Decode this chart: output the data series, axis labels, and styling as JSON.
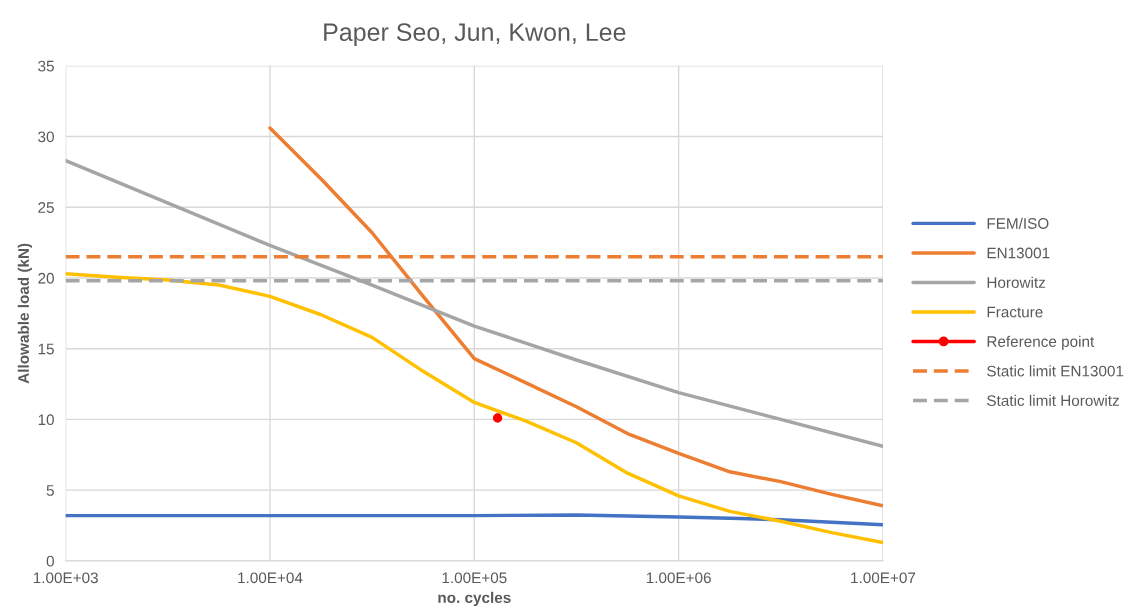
{
  "chart_data": {
    "type": "line",
    "title": "Paper Seo, Jun, Kwon, Lee",
    "xlabel": "no. cycles",
    "ylabel": "Allowable load (kN)",
    "log": "x",
    "xlim": [
      1000,
      10000000
    ],
    "xticks": [
      {
        "value": 1000,
        "label": "1.00E+03"
      },
      {
        "value": 10000,
        "label": "1.00E+04"
      },
      {
        "value": 100000,
        "label": "1.00E+05"
      },
      {
        "value": 1000000,
        "label": "1.00E+06"
      },
      {
        "value": 10000000,
        "label": "1.00E+07"
      }
    ],
    "ylim": [
      0,
      35
    ],
    "yticks": [
      0,
      5,
      10,
      15,
      20,
      25,
      30,
      35
    ],
    "grid": true,
    "legend": "right",
    "series": [
      {
        "name": "FEM/ISO",
        "color": "#4472c4",
        "x": [
          1000,
          10000,
          100000,
          316000,
          1000000,
          2000000,
          3160000,
          10000000
        ],
        "values": [
          3.2,
          3.2,
          3.2,
          3.25,
          3.1,
          3.0,
          2.9,
          2.55
        ]
      },
      {
        "name": "EN13001",
        "color": "#ed7d31",
        "x": [
          10000,
          17800,
          31600,
          56200,
          100000,
          178000,
          316000,
          562000,
          1000000,
          1780000,
          3160000,
          5620000,
          10000000
        ],
        "values": [
          30.6,
          27.0,
          23.2,
          18.7,
          14.3,
          12.6,
          10.9,
          9.0,
          7.6,
          6.3,
          5.6,
          4.7,
          3.9
        ]
      },
      {
        "name": "Horowitz",
        "color": "#a5a5a5",
        "x": [
          1000,
          10000,
          31600,
          100000,
          316000,
          1000000,
          3160000,
          10000000
        ],
        "values": [
          28.3,
          22.3,
          19.5,
          16.6,
          14.2,
          11.9,
          10.0,
          8.1
        ]
      },
      {
        "name": "Fracture",
        "color": "#ffc000",
        "x": [
          1000,
          1780,
          3160,
          5620,
          10000,
          17800,
          31600,
          56200,
          100000,
          178000,
          316000,
          562000,
          1000000,
          1780000,
          3160000,
          5620000,
          10000000
        ],
        "values": [
          20.3,
          20.05,
          19.85,
          19.5,
          18.7,
          17.4,
          15.8,
          13.4,
          11.2,
          9.9,
          8.35,
          6.2,
          4.6,
          3.5,
          2.8,
          2.0,
          1.3
        ]
      },
      {
        "name": "Reference point",
        "type": "scatter",
        "color": "#ff0000",
        "marker": "circle",
        "x": [
          130000
        ],
        "values": [
          10.1
        ]
      }
    ],
    "ref_lines": [
      {
        "axis": "y",
        "value": 21.5,
        "label": "Static limit EN13001",
        "color": "#ed7d31",
        "line_style": "dashed"
      },
      {
        "axis": "y",
        "value": 19.8,
        "label": "Static limit Horowitz",
        "color": "#a5a5a5",
        "line_style": "dashed"
      }
    ]
  }
}
